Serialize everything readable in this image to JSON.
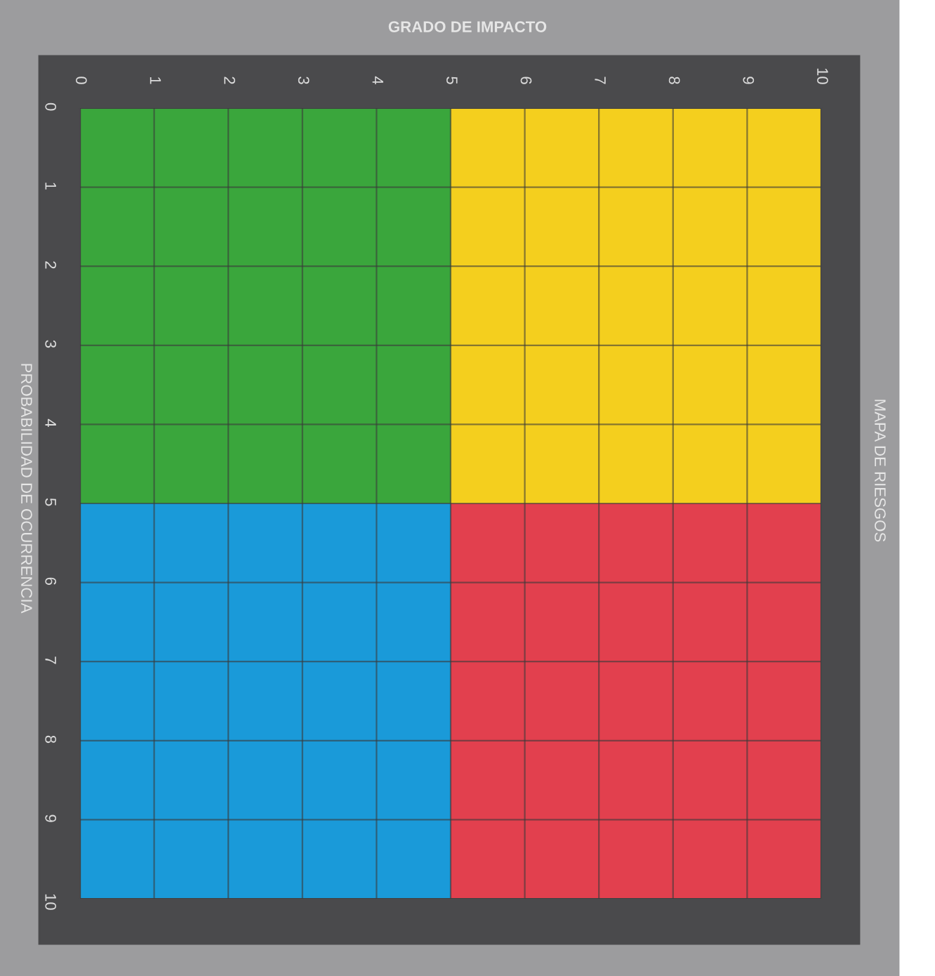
{
  "chart_data": {
    "type": "bar",
    "orientation": "horizontal",
    "stacked": true,
    "title": "GRADO DE IMPACTO",
    "ylabel": "PROBABILIDAD DE OCURRENCIA",
    "annotations": [
      "MAPA DE RIESGOS"
    ],
    "x": [
      2.5,
      7.5
    ],
    "series": [
      {
        "colors": [
          "#3aa63c",
          "#1a9ad9"
        ],
        "values": [
          5,
          5
        ]
      },
      {
        "colors": [
          "#f4cf1e",
          "#e2404e"
        ],
        "values": [
          5,
          5
        ]
      }
    ],
    "xlim": [
      0,
      10
    ],
    "xticks": [
      0,
      1,
      2,
      3,
      4,
      5,
      6,
      7,
      8,
      9,
      10
    ],
    "ylim": [
      10,
      0
    ],
    "yticks": [
      0,
      1,
      2,
      3,
      4,
      5,
      6,
      7,
      8,
      9,
      10
    ],
    "grid": true
  }
}
